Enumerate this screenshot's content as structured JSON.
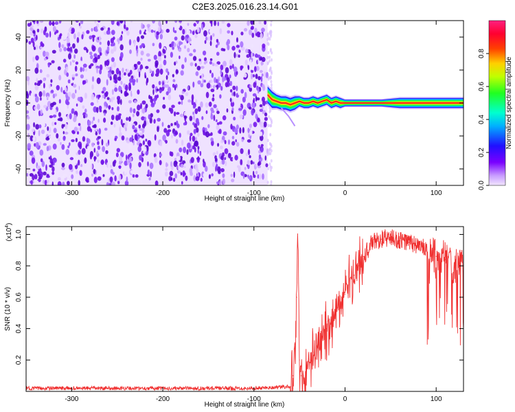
{
  "page_title": "C2E3.2025.016.23.14.G01",
  "colors": {
    "snr_line": "#f03030",
    "spectro_noise": "#6a10e0",
    "axis": "#000000"
  },
  "colorbar": {
    "label": "Normalized spectral amplitude",
    "ticks": [
      "0.0",
      "0.2",
      "0.4",
      "0.6",
      "0.8"
    ],
    "tick_values": [
      0.0,
      0.2,
      0.4,
      0.6,
      0.8
    ],
    "range": [
      0,
      1
    ],
    "colormap": "rainbow (purple → blue → cyan → green → yellow → orange → red → magenta)"
  },
  "chart_data": [
    {
      "type": "heatmap",
      "title": "",
      "xlabel": "Height of straight line (km)",
      "ylabel": "Frequency (Hz)",
      "xlim": [
        -350,
        130
      ],
      "ylim": [
        -50,
        50
      ],
      "x_ticks": [
        -300,
        -200,
        -100,
        0,
        100
      ],
      "x_tick_labels": [
        "-300",
        "-200",
        "-100",
        "0",
        "100"
      ],
      "y_ticks": [
        -40,
        -20,
        0,
        20,
        40
      ],
      "y_tick_labels": [
        "-40",
        "-20",
        "0",
        "20",
        "40"
      ],
      "regions": [
        {
          "x_range": [
            -350,
            -85
          ],
          "description": "broadband noise, normalized amplitude ~0.1-0.3 across all frequencies"
        },
        {
          "x_range": [
            -85,
            130
          ],
          "description": "narrow signal band centered near 0 Hz, peak amplitude ~1.0 along center"
        }
      ],
      "signal_track": {
        "x": [
          -85,
          -80,
          -75,
          -70,
          -65,
          -60,
          -55,
          -50,
          -45,
          -40,
          -35,
          -30,
          -25,
          -20,
          -15,
          -10,
          -5,
          0,
          20,
          40,
          60,
          80,
          100,
          130
        ],
        "freq_hz": [
          5,
          2,
          1,
          0,
          0,
          -1,
          0,
          1,
          0,
          0,
          1,
          0,
          1,
          2,
          0,
          1,
          0,
          0,
          0,
          0,
          0,
          0,
          0,
          0
        ],
        "half_width_hz": [
          5,
          5,
          4,
          4,
          4,
          4,
          4,
          3,
          3,
          3,
          3,
          3,
          3,
          3,
          3,
          3,
          3,
          2,
          2,
          2,
          3,
          3,
          3,
          3
        ]
      }
    },
    {
      "type": "line",
      "title": "",
      "xlabel": "Height of straight line (km)",
      "ylabel": "SNR (10 * v/v)",
      "y_scale_label": "(x10",
      "y_scale_exponent": "4",
      "y_scale_close": ")",
      "xlim": [
        -350,
        130
      ],
      "ylim": [
        0,
        1.05
      ],
      "x_ticks": [
        -300,
        -200,
        -100,
        0,
        100
      ],
      "x_tick_labels": [
        "-300",
        "-200",
        "-100",
        "0",
        "100"
      ],
      "y_ticks": [
        0.2,
        0.4,
        0.6,
        0.8,
        1.0
      ],
      "y_tick_labels": [
        "0.2",
        "0.4",
        "0.6",
        "0.8",
        "1.0"
      ],
      "series": [
        {
          "x": [
            -350,
            -300,
            -250,
            -200,
            -150,
            -100,
            -60,
            -57,
            -55,
            -53,
            -52,
            -50,
            -48,
            -45,
            -42,
            -38,
            -35,
            -30,
            -25,
            -20,
            -15,
            -10,
            -5,
            0,
            5,
            10,
            15,
            20,
            25,
            30,
            40,
            50,
            60,
            70,
            80,
            90,
            100,
            110,
            120,
            130
          ],
          "values": [
            0.02,
            0.02,
            0.02,
            0.02,
            0.02,
            0.02,
            0.03,
            0.1,
            0.3,
            0.6,
            1.05,
            0.2,
            0.1,
            0.05,
            0.15,
            0.2,
            0.25,
            0.3,
            0.35,
            0.4,
            0.45,
            0.5,
            0.55,
            0.62,
            0.68,
            0.74,
            0.8,
            0.86,
            0.9,
            0.95,
            0.97,
            0.98,
            0.96,
            0.95,
            0.93,
            0.9,
            0.86,
            0.84,
            0.8,
            0.78
          ]
        }
      ]
    }
  ]
}
